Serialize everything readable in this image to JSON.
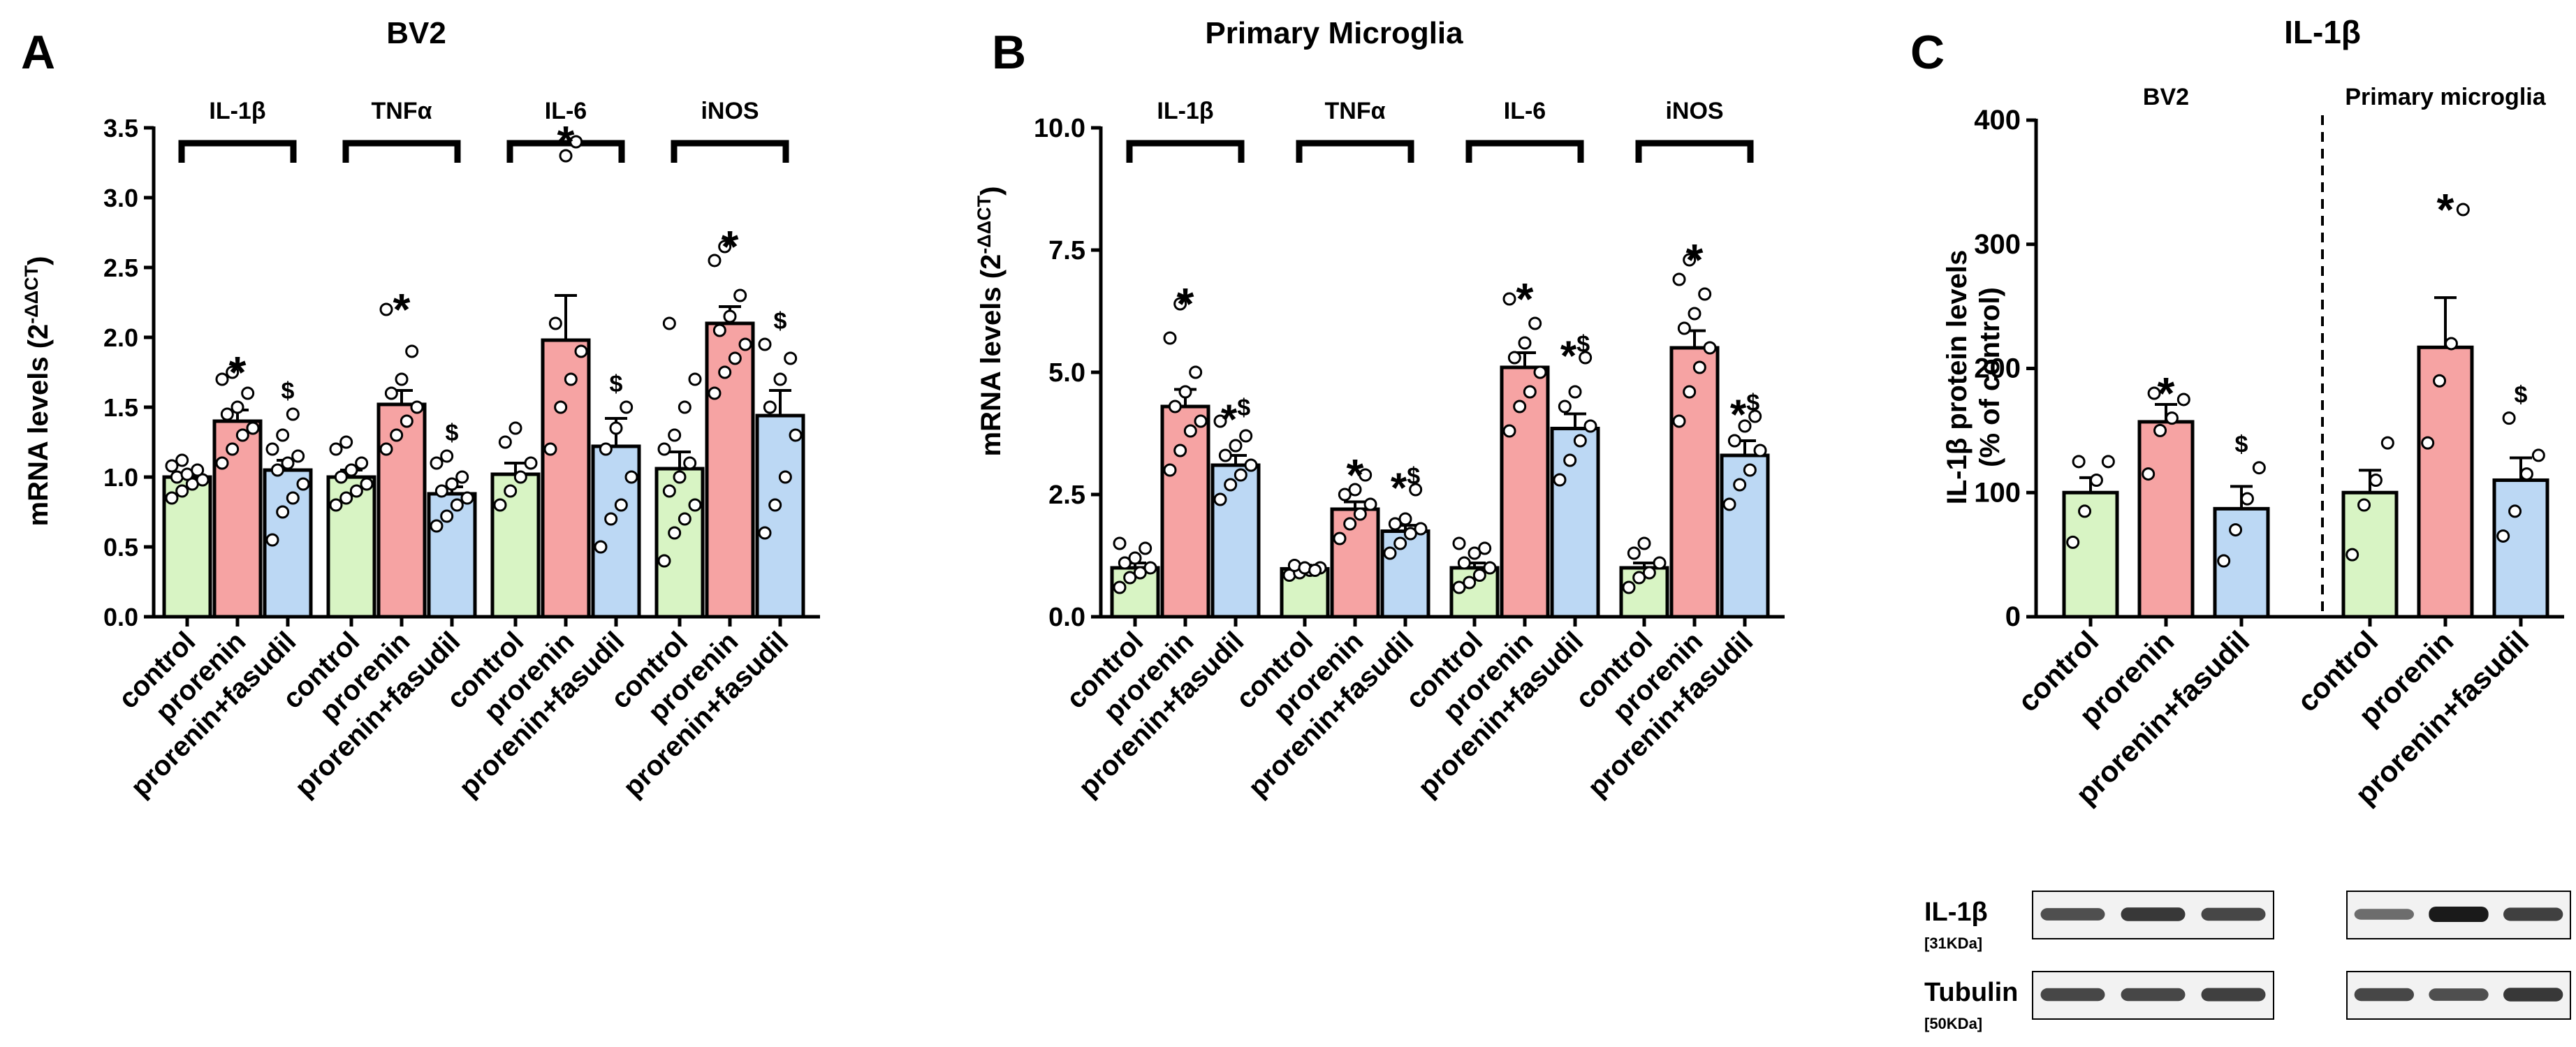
{
  "colors": {
    "control": "#d8f4c4",
    "prorenin": "#f6a3a3",
    "fasudil": "#bcd8f4",
    "axis": "#000000",
    "blot_bg": "#f2f2f2",
    "band": "#1a1a1a"
  },
  "chart_data": [
    {
      "panel": "A",
      "type": "bar",
      "title": "BV2",
      "ylabel_main": "mRNA levels (2",
      "ylabel_sup": "-ΔΔCT",
      "ylabel_close": ")",
      "ylim": [
        0,
        3.5
      ],
      "yticks": [
        "0.0",
        "0.5",
        "1.0",
        "1.5",
        "2.0",
        "2.5",
        "3.0",
        "3.5"
      ],
      "ytick_values": [
        0,
        0.5,
        1,
        1.5,
        2,
        2.5,
        3,
        3.5
      ],
      "groups": [
        {
          "name": "IL-1β",
          "bars": [
            {
              "category": "control",
              "value": 1.0,
              "sem": 0.03,
              "mark": "",
              "points": [
                0.85,
                0.9,
                0.95,
                0.98,
                1.0,
                1.02,
                1.05,
                1.08,
                1.12
              ]
            },
            {
              "category": "prorenin",
              "value": 1.4,
              "sem": 0.08,
              "mark": "*",
              "points": [
                1.1,
                1.2,
                1.3,
                1.35,
                1.45,
                1.5,
                1.6,
                1.7,
                1.75
              ]
            },
            {
              "category": "prorenin+fasudil",
              "value": 1.05,
              "sem": 0.07,
              "mark": "$",
              "points": [
                0.55,
                0.75,
                0.85,
                0.95,
                1.05,
                1.1,
                1.15,
                1.2,
                1.3,
                1.45
              ]
            }
          ]
        },
        {
          "name": "TNFα",
          "bars": [
            {
              "category": "control",
              "value": 1.0,
              "sem": 0.05,
              "mark": "",
              "points": [
                0.8,
                0.85,
                0.9,
                0.95,
                1.0,
                1.05,
                1.1,
                1.2,
                1.25
              ]
            },
            {
              "category": "prorenin",
              "value": 1.52,
              "sem": 0.1,
              "mark": "*",
              "points": [
                1.2,
                1.3,
                1.4,
                1.5,
                1.6,
                1.7,
                1.9,
                2.2
              ]
            },
            {
              "category": "prorenin+fasudil",
              "value": 0.88,
              "sem": 0.05,
              "mark": "$",
              "points": [
                0.65,
                0.72,
                0.8,
                0.85,
                0.9,
                0.95,
                1.0,
                1.1,
                1.15
              ]
            }
          ]
        },
        {
          "name": "IL-6",
          "bars": [
            {
              "category": "control",
              "value": 1.02,
              "sem": 0.08,
              "mark": "",
              "points": [
                0.8,
                0.9,
                1.0,
                1.1,
                1.25,
                1.35
              ]
            },
            {
              "category": "prorenin",
              "value": 1.98,
              "sem": 0.32,
              "mark": "*",
              "points": [
                1.2,
                1.5,
                1.7,
                1.9,
                2.1,
                3.3,
                3.4
              ]
            },
            {
              "category": "prorenin+fasudil",
              "value": 1.22,
              "sem": 0.2,
              "mark": "$",
              "points": [
                0.5,
                0.7,
                0.8,
                1.0,
                1.2,
                1.35,
                1.5
              ]
            }
          ]
        },
        {
          "name": "iNOS",
          "bars": [
            {
              "category": "control",
              "value": 1.06,
              "sem": 0.12,
              "mark": "",
              "points": [
                0.4,
                0.6,
                0.7,
                0.8,
                0.9,
                1.0,
                1.1,
                1.2,
                1.3,
                1.5,
                1.7,
                2.1
              ]
            },
            {
              "category": "prorenin",
              "value": 2.1,
              "sem": 0.12,
              "mark": "*",
              "points": [
                1.6,
                1.75,
                1.85,
                1.95,
                2.05,
                2.15,
                2.3,
                2.55,
                2.65
              ]
            },
            {
              "category": "prorenin+fasudil",
              "value": 1.44,
              "sem": 0.18,
              "mark": "$",
              "points": [
                0.6,
                0.8,
                1.0,
                1.3,
                1.5,
                1.7,
                1.85,
                1.95
              ]
            }
          ]
        }
      ]
    },
    {
      "panel": "B",
      "type": "bar",
      "title": "Primary Microglia",
      "ylabel_main": "mRNA levels (2",
      "ylabel_sup": "-ΔΔCT",
      "ylabel_close": ")",
      "ylim": [
        0,
        10
      ],
      "yticks": [
        "0.0",
        "2.5",
        "5.0",
        "7.5",
        "10.0"
      ],
      "ytick_values": [
        0,
        2.5,
        5,
        7.5,
        10
      ],
      "groups": [
        {
          "name": "IL-1β",
          "bars": [
            {
              "category": "control",
              "value": 1.0,
              "sem": 0.1,
              "mark": "",
              "points": [
                0.6,
                0.8,
                0.9,
                1.0,
                1.1,
                1.2,
                1.4,
                1.5
              ]
            },
            {
              "category": "prorenin",
              "value": 4.3,
              "sem": 0.35,
              "mark": "*",
              "points": [
                3.0,
                3.4,
                3.8,
                4.0,
                4.3,
                4.6,
                5.0,
                5.7,
                6.4
              ]
            },
            {
              "category": "prorenin+fasudil",
              "value": 3.1,
              "sem": 0.2,
              "mark": "*$",
              "points": [
                2.4,
                2.7,
                2.9,
                3.1,
                3.3,
                3.5,
                3.7,
                4.0
              ]
            }
          ]
        },
        {
          "name": "TNFα",
          "bars": [
            {
              "category": "control",
              "value": 0.98,
              "sem": 0.05,
              "mark": "",
              "points": [
                0.85,
                0.9,
                0.95,
                1.0,
                1.05,
                1.0,
                0.95
              ]
            },
            {
              "category": "prorenin",
              "value": 2.2,
              "sem": 0.15,
              "mark": "*",
              "points": [
                1.6,
                1.9,
                2.1,
                2.3,
                2.5,
                2.6,
                2.9
              ]
            },
            {
              "category": "prorenin+fasudil",
              "value": 1.75,
              "sem": 0.12,
              "mark": "*$",
              "points": [
                1.3,
                1.5,
                1.7,
                1.8,
                1.9,
                2.0,
                2.6
              ]
            }
          ]
        },
        {
          "name": "IL-6",
          "bars": [
            {
              "category": "control",
              "value": 1.0,
              "sem": 0.1,
              "mark": "",
              "points": [
                0.6,
                0.7,
                0.85,
                1.0,
                1.1,
                1.3,
                1.4,
                1.5
              ]
            },
            {
              "category": "prorenin",
              "value": 5.1,
              "sem": 0.3,
              "mark": "*",
              "points": [
                3.8,
                4.3,
                4.6,
                5.0,
                5.3,
                5.6,
                6.0,
                6.5
              ]
            },
            {
              "category": "prorenin+fasudil",
              "value": 3.85,
              "sem": 0.3,
              "mark": "*$",
              "points": [
                2.8,
                3.2,
                3.6,
                3.9,
                4.3,
                4.6,
                5.3
              ]
            }
          ]
        },
        {
          "name": "iNOS",
          "bars": [
            {
              "category": "control",
              "value": 1.0,
              "sem": 0.1,
              "mark": "",
              "points": [
                0.6,
                0.8,
                0.9,
                1.1,
                1.3,
                1.5
              ]
            },
            {
              "category": "prorenin",
              "value": 5.5,
              "sem": 0.35,
              "mark": "*",
              "points": [
                4.0,
                4.6,
                5.1,
                5.5,
                5.9,
                6.2,
                6.6,
                6.9,
                7.3
              ]
            },
            {
              "category": "prorenin+fasudil",
              "value": 3.3,
              "sem": 0.3,
              "mark": "*$",
              "points": [
                2.3,
                2.7,
                3.0,
                3.4,
                3.6,
                3.9,
                4.1
              ]
            }
          ]
        }
      ]
    },
    {
      "panel": "C",
      "type": "bar",
      "title": "IL-1β",
      "ylabel_line1": "IL-1β protein levels",
      "ylabel_line2": "(% of control)",
      "ylim": [
        0,
        400
      ],
      "yticks": [
        "0",
        "100",
        "200",
        "300",
        "400"
      ],
      "ytick_values": [
        0,
        100,
        200,
        300,
        400
      ],
      "groups": [
        {
          "name": "BV2",
          "bars": [
            {
              "category": "control",
              "value": 100,
              "sem": 12,
              "mark": "",
              "points": [
                60,
                85,
                110,
                125,
                125
              ]
            },
            {
              "category": "prorenin",
              "value": 157,
              "sem": 14,
              "mark": "*",
              "points": [
                115,
                150,
                160,
                175,
                180
              ]
            },
            {
              "category": "prorenin+fasudil",
              "value": 87,
              "sem": 18,
              "mark": "$",
              "points": [
                45,
                70,
                95,
                120
              ]
            }
          ]
        },
        {
          "name": "Primary microglia",
          "bars": [
            {
              "category": "control",
              "value": 100,
              "sem": 18,
              "mark": "",
              "points": [
                50,
                90,
                110,
                140
              ]
            },
            {
              "category": "prorenin",
              "value": 217,
              "sem": 40,
              "mark": "*",
              "points": [
                140,
                190,
                220,
                328
              ]
            },
            {
              "category": "prorenin+fasudil",
              "value": 110,
              "sem": 18,
              "mark": "$",
              "points": [
                65,
                85,
                115,
                130,
                160
              ]
            }
          ]
        }
      ]
    }
  ],
  "blot": {
    "rows": [
      {
        "label": "IL-1β",
        "size": "[31KDa]",
        "bv2": [
          0.65,
          0.8,
          0.7
        ],
        "primary": [
          0.45,
          1.0,
          0.75
        ]
      },
      {
        "label": "Tubulin",
        "size": "[50KDa]",
        "bv2": [
          0.7,
          0.7,
          0.75
        ],
        "primary": [
          0.7,
          0.65,
          0.8
        ]
      }
    ]
  }
}
